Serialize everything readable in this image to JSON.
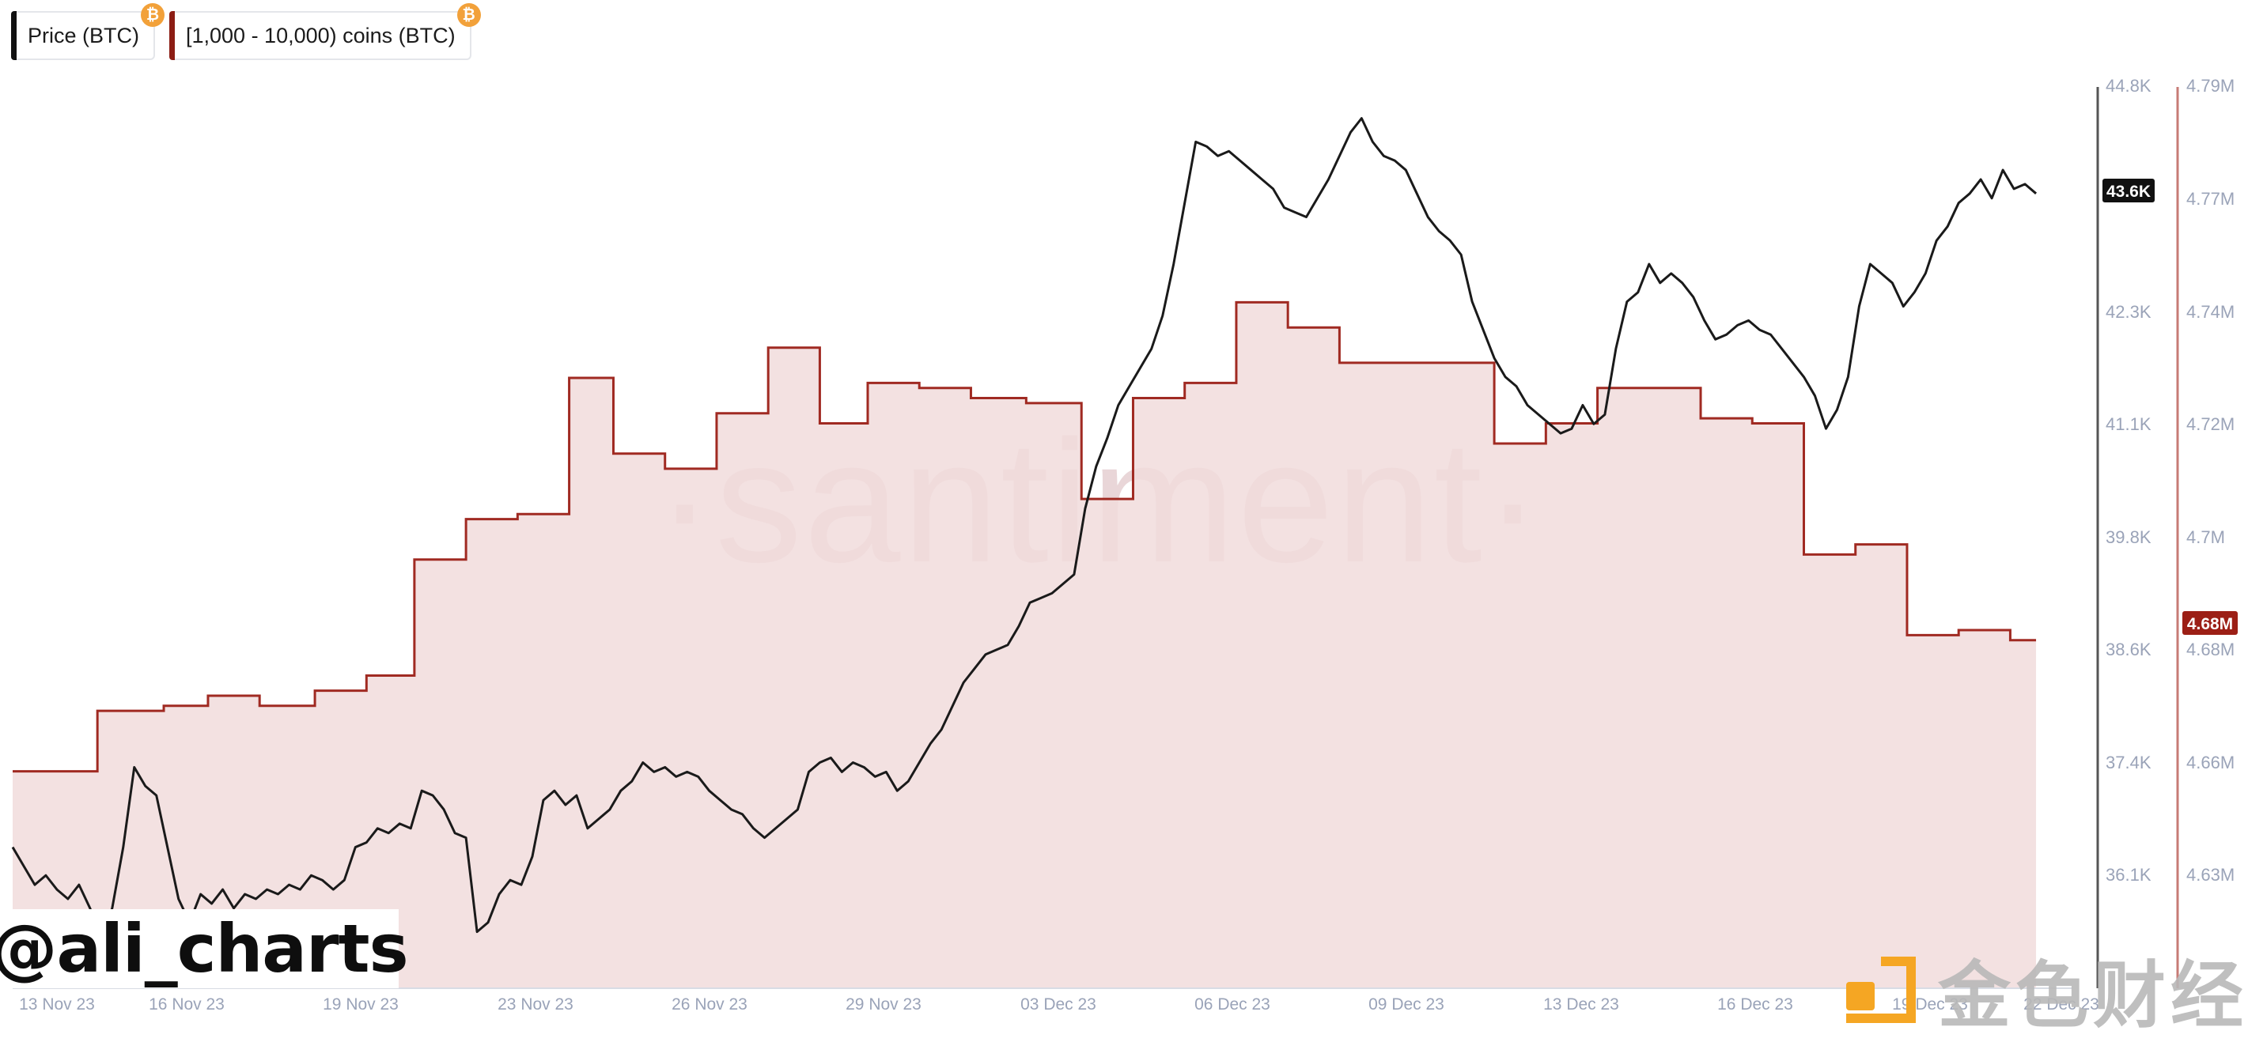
{
  "legend": {
    "items": [
      {
        "label": "Price (BTC)",
        "color": "#111111",
        "badge": "₿"
      },
      {
        "label": "[1,000 - 10,000) coins (BTC)",
        "color": "#8c1d14",
        "badge": "₿"
      }
    ]
  },
  "watermarks": {
    "center": "·santiment·",
    "handle": "@ali_charts",
    "brand": "金色财经"
  },
  "colors": {
    "price_line": "#1a1a1a",
    "holdings_line": "#a02a22",
    "holdings_fill": "#f1dcdc",
    "price_axis": "#555555",
    "holdings_axis": "#c77b76",
    "tick_text": "#9aa3b8",
    "price_badge_bg": "#111111",
    "holdings_badge_bg": "#9c1f16",
    "jinse_orange": "#f5a623"
  },
  "chart_data": {
    "type": "line",
    "x_tick_labels": [
      "13 Nov 23",
      "16 Nov 23",
      "19 Nov 23",
      "23 Nov 23",
      "26 Nov 23",
      "29 Nov 23",
      "03 Dec 23",
      "06 Dec 23",
      "09 Dec 23",
      "13 Dec 23",
      "16 Dec 23",
      "19 Dec 23",
      "22 Dec 23"
    ],
    "x_range": [
      "2023-11-13",
      "2023-12-22"
    ],
    "y_left": {
      "label": "Price (BTC)",
      "tick_labels": [
        "44.8K",
        "42.3K",
        "41.1K",
        "39.8K",
        "38.6K",
        "37.4K",
        "36.1K"
      ],
      "ticks": [
        44800,
        42300,
        41100,
        39800,
        38600,
        37400,
        36100
      ],
      "current_label": "43.6K",
      "current_value": 43600
    },
    "y_right": {
      "label": "[1,000 - 10,000) coins (BTC)",
      "tick_labels": [
        "4.79M",
        "4.77M",
        "4.74M",
        "4.72M",
        "4.7M",
        "4.68M",
        "4.66M",
        "4.63M"
      ],
      "ticks": [
        4790000,
        4770000,
        4740000,
        4720000,
        4700000,
        4680000,
        4660000,
        4630000
      ],
      "current_label": "4.68M",
      "current_value": 4679000
    },
    "series": [
      {
        "name": "Price (BTC)",
        "axis": "left",
        "points": [
          [
            0,
            36700
          ],
          [
            0.3,
            36500
          ],
          [
            0.6,
            36300
          ],
          [
            0.9,
            36400
          ],
          [
            1.2,
            36250
          ],
          [
            1.5,
            36150
          ],
          [
            1.8,
            36300
          ],
          [
            2.1,
            36050
          ],
          [
            2.4,
            35750
          ],
          [
            2.7,
            36050
          ],
          [
            3.0,
            36700
          ],
          [
            3.3,
            37550
          ],
          [
            3.6,
            37350
          ],
          [
            3.9,
            37250
          ],
          [
            4.2,
            36700
          ],
          [
            4.5,
            36150
          ],
          [
            4.8,
            35900
          ],
          [
            5.1,
            36200
          ],
          [
            5.4,
            36100
          ],
          [
            5.7,
            36250
          ],
          [
            6.0,
            36050
          ],
          [
            6.3,
            36200
          ],
          [
            6.6,
            36150
          ],
          [
            6.9,
            36250
          ],
          [
            7.2,
            36200
          ],
          [
            7.5,
            36300
          ],
          [
            7.8,
            36250
          ],
          [
            8.1,
            36400
          ],
          [
            8.4,
            36350
          ],
          [
            8.7,
            36250
          ],
          [
            9.0,
            36350
          ],
          [
            9.3,
            36700
          ],
          [
            9.6,
            36750
          ],
          [
            9.9,
            36900
          ],
          [
            10.2,
            36850
          ],
          [
            10.5,
            36950
          ],
          [
            10.8,
            36900
          ],
          [
            11.1,
            37300
          ],
          [
            11.4,
            37250
          ],
          [
            11.7,
            37100
          ],
          [
            12.0,
            36850
          ],
          [
            12.3,
            36800
          ],
          [
            12.6,
            35800
          ],
          [
            12.9,
            35900
          ],
          [
            13.2,
            36200
          ],
          [
            13.5,
            36350
          ],
          [
            13.8,
            36300
          ],
          [
            14.1,
            36600
          ],
          [
            14.4,
            37200
          ],
          [
            14.7,
            37300
          ],
          [
            15.0,
            37150
          ],
          [
            15.3,
            37250
          ],
          [
            15.6,
            36900
          ],
          [
            15.9,
            37000
          ],
          [
            16.2,
            37100
          ],
          [
            16.5,
            37300
          ],
          [
            16.8,
            37400
          ],
          [
            17.1,
            37600
          ],
          [
            17.4,
            37500
          ],
          [
            17.7,
            37550
          ],
          [
            18.0,
            37450
          ],
          [
            18.3,
            37500
          ],
          [
            18.6,
            37450
          ],
          [
            18.9,
            37300
          ],
          [
            19.2,
            37200
          ],
          [
            19.5,
            37100
          ],
          [
            19.8,
            37050
          ],
          [
            20.1,
            36900
          ],
          [
            20.4,
            36800
          ],
          [
            20.7,
            36900
          ],
          [
            21.0,
            37000
          ],
          [
            21.3,
            37100
          ],
          [
            21.6,
            37500
          ],
          [
            21.9,
            37600
          ],
          [
            22.2,
            37650
          ],
          [
            22.5,
            37500
          ],
          [
            22.8,
            37600
          ],
          [
            23.1,
            37550
          ],
          [
            23.4,
            37450
          ],
          [
            23.7,
            37500
          ],
          [
            24.0,
            37300
          ],
          [
            24.3,
            37400
          ],
          [
            24.6,
            37600
          ],
          [
            24.9,
            37800
          ],
          [
            25.2,
            37950
          ],
          [
            25.5,
            38200
          ],
          [
            25.8,
            38450
          ],
          [
            26.1,
            38600
          ],
          [
            26.4,
            38750
          ],
          [
            26.7,
            38800
          ],
          [
            27.0,
            38850
          ],
          [
            27.3,
            39050
          ],
          [
            27.6,
            39300
          ],
          [
            27.9,
            39350
          ],
          [
            28.2,
            39400
          ],
          [
            28.5,
            39500
          ],
          [
            28.8,
            39600
          ],
          [
            29.1,
            40300
          ],
          [
            29.4,
            40750
          ],
          [
            29.7,
            41050
          ],
          [
            30.0,
            41400
          ],
          [
            30.3,
            41600
          ],
          [
            30.6,
            41800
          ],
          [
            30.9,
            42000
          ],
          [
            31.2,
            42350
          ],
          [
            31.5,
            42900
          ],
          [
            31.8,
            43550
          ],
          [
            32.1,
            44200
          ],
          [
            32.4,
            44150
          ],
          [
            32.7,
            44050
          ],
          [
            33.0,
            44100
          ],
          [
            33.3,
            44000
          ],
          [
            33.6,
            43900
          ],
          [
            33.9,
            43800
          ],
          [
            34.2,
            43700
          ],
          [
            34.5,
            43500
          ],
          [
            34.8,
            43450
          ],
          [
            35.1,
            43400
          ],
          [
            35.4,
            43600
          ],
          [
            35.7,
            43800
          ],
          [
            36.0,
            44050
          ],
          [
            36.3,
            44300
          ],
          [
            36.6,
            44450
          ],
          [
            36.9,
            44200
          ],
          [
            37.2,
            44050
          ],
          [
            37.5,
            44000
          ],
          [
            37.8,
            43900
          ],
          [
            38.1,
            43650
          ],
          [
            38.4,
            43400
          ],
          [
            38.7,
            43250
          ],
          [
            39.0,
            43150
          ],
          [
            39.3,
            43000
          ],
          [
            39.6,
            42500
          ],
          [
            39.9,
            42200
          ],
          [
            40.2,
            41900
          ],
          [
            40.5,
            41700
          ],
          [
            40.8,
            41600
          ],
          [
            41.1,
            41400
          ],
          [
            41.4,
            41300
          ],
          [
            41.7,
            41200
          ],
          [
            42.0,
            41100
          ],
          [
            42.3,
            41150
          ],
          [
            42.6,
            41400
          ],
          [
            42.9,
            41200
          ],
          [
            43.2,
            41300
          ],
          [
            43.5,
            42000
          ],
          [
            43.8,
            42500
          ],
          [
            44.1,
            42600
          ],
          [
            44.4,
            42900
          ],
          [
            44.7,
            42700
          ],
          [
            45.0,
            42800
          ],
          [
            45.3,
            42700
          ],
          [
            45.6,
            42550
          ],
          [
            45.9,
            42300
          ],
          [
            46.2,
            42100
          ],
          [
            46.5,
            42150
          ],
          [
            46.8,
            42250
          ],
          [
            47.1,
            42300
          ],
          [
            47.4,
            42200
          ],
          [
            47.7,
            42150
          ],
          [
            48.0,
            42000
          ],
          [
            48.3,
            41850
          ],
          [
            48.6,
            41700
          ],
          [
            48.9,
            41500
          ],
          [
            49.2,
            41150
          ],
          [
            49.5,
            41350
          ],
          [
            49.8,
            41700
          ],
          [
            50.1,
            42450
          ],
          [
            50.4,
            42900
          ],
          [
            50.7,
            42800
          ],
          [
            51.0,
            42700
          ],
          [
            51.3,
            42450
          ],
          [
            51.6,
            42600
          ],
          [
            51.9,
            42800
          ],
          [
            52.2,
            43150
          ],
          [
            52.5,
            43300
          ],
          [
            52.8,
            43550
          ],
          [
            53.1,
            43650
          ],
          [
            53.4,
            43800
          ],
          [
            53.7,
            43600
          ],
          [
            54.0,
            43900
          ],
          [
            54.3,
            43700
          ],
          [
            54.6,
            43750
          ],
          [
            54.9,
            43650
          ]
        ]
      },
      {
        "name": "[1,000 - 10,000) coins (BTC)",
        "axis": "right",
        "steps": [
          [
            0,
            4654000
          ],
          [
            2.3,
            4666000
          ],
          [
            4.1,
            4667000
          ],
          [
            5.3,
            4669000
          ],
          [
            6.7,
            4667000
          ],
          [
            8.2,
            4670000
          ],
          [
            9.6,
            4673000
          ],
          [
            10.9,
            4696000
          ],
          [
            12.3,
            4704000
          ],
          [
            13.7,
            4705000
          ],
          [
            15.1,
            4732000
          ],
          [
            16.3,
            4717000
          ],
          [
            17.7,
            4714000
          ],
          [
            19.1,
            4725000
          ],
          [
            20.5,
            4738000
          ],
          [
            21.9,
            4723000
          ],
          [
            23.2,
            4731000
          ],
          [
            24.6,
            4730000
          ],
          [
            26.0,
            4728000
          ],
          [
            27.5,
            4727000
          ],
          [
            29.0,
            4708000
          ],
          [
            30.4,
            4728000
          ],
          [
            31.8,
            4731000
          ],
          [
            33.2,
            4747000
          ],
          [
            34.6,
            4742000
          ],
          [
            36.0,
            4735000
          ],
          [
            37.4,
            4735000
          ],
          [
            38.8,
            4735000
          ],
          [
            40.2,
            4719000
          ],
          [
            41.6,
            4723000
          ],
          [
            43.0,
            4730000
          ],
          [
            44.4,
            4730000
          ],
          [
            45.8,
            4724000
          ],
          [
            47.2,
            4723000
          ],
          [
            48.6,
            4697000
          ],
          [
            50.0,
            4699000
          ],
          [
            51.4,
            4681000
          ],
          [
            52.8,
            4682000
          ],
          [
            54.2,
            4680000
          ],
          [
            54.9,
            4680000
          ]
        ]
      }
    ]
  }
}
